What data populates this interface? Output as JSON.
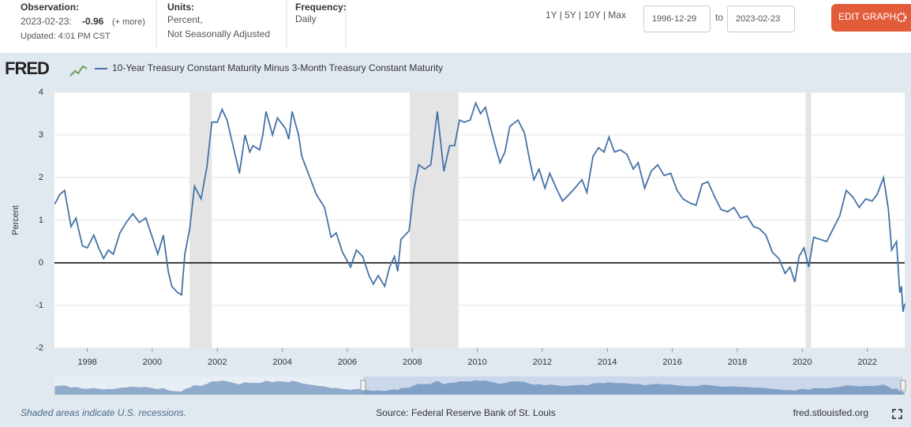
{
  "header": {
    "observation_label": "Observation:",
    "observation_date": "2023-02-23:",
    "observation_value": -0.96,
    "more": "(+ more)",
    "updated": "Updated: 4:01 PM CST",
    "units_label": "Units:",
    "units_line1": "Percent,",
    "units_line2": "Not Seasonally Adjusted",
    "frequency_label": "Frequency:",
    "frequency": "Daily",
    "ranges": "1Y | 5Y | 10Y | Max",
    "start_date": "1996-12-29",
    "to": "to",
    "end_date": "2023-02-23",
    "edit_button": "EDIT GRAPH"
  },
  "logo": "FRED",
  "footer": {
    "recession_note": "Shaded areas indicate U.S. recessions.",
    "source": "Source: Federal Reserve Bank of St. Louis",
    "site": "fred.stlouisfed.org"
  },
  "chart_data": {
    "type": "line",
    "ylabel": "Percent",
    "xlim": [
      1996.99,
      2023.15
    ],
    "xticks": [
      1998,
      2000,
      2002,
      2004,
      2006,
      2008,
      2010,
      2012,
      2014,
      2016,
      2018,
      2020,
      2022
    ],
    "ylim": [
      -2,
      4
    ],
    "yticks": [
      -2,
      -1,
      0,
      1,
      2,
      3,
      4
    ],
    "grid": true,
    "reference_line": 0,
    "recessions": [
      {
        "start": 2001.15,
        "end": 2001.83
      },
      {
        "start": 2007.92,
        "end": 2009.42
      },
      {
        "start": 2020.1,
        "end": 2020.27
      }
    ],
    "x": [
      1997.0,
      1997.15,
      1997.3,
      1997.5,
      1997.65,
      1997.85,
      1998.0,
      1998.2,
      1998.35,
      1998.5,
      1998.65,
      1998.8,
      1999.0,
      1999.2,
      1999.4,
      1999.6,
      1999.8,
      2000.0,
      2000.17,
      2000.34,
      2000.49,
      2000.6,
      2000.78,
      2000.9,
      2001.0,
      2001.15,
      2001.3,
      2001.5,
      2001.68,
      2001.83,
      2002.0,
      2002.15,
      2002.3,
      2002.5,
      2002.68,
      2002.85,
      2003.0,
      2003.1,
      2003.3,
      2003.4,
      2003.5,
      2003.7,
      2003.85,
      2004.1,
      2004.2,
      2004.3,
      2004.5,
      2004.6,
      2004.8,
      2005.05,
      2005.3,
      2005.5,
      2005.66,
      2005.85,
      2006.1,
      2006.28,
      2006.47,
      2006.67,
      2006.8,
      2006.95,
      2007.15,
      2007.3,
      2007.45,
      2007.55,
      2007.65,
      2007.9,
      2008.05,
      2008.2,
      2008.38,
      2008.57,
      2008.77,
      2008.97,
      2009.15,
      2009.3,
      2009.45,
      2009.6,
      2009.78,
      2009.95,
      2010.1,
      2010.25,
      2010.38,
      2010.55,
      2010.7,
      2010.85,
      2011.0,
      2011.25,
      2011.45,
      2011.6,
      2011.74,
      2011.9,
      2012.08,
      2012.23,
      2012.43,
      2012.62,
      2012.82,
      2013.0,
      2013.22,
      2013.37,
      2013.56,
      2013.73,
      2013.9,
      2014.05,
      2014.22,
      2014.4,
      2014.6,
      2014.8,
      2014.95,
      2015.15,
      2015.35,
      2015.55,
      2015.75,
      2015.95,
      2016.15,
      2016.33,
      2016.55,
      2016.73,
      2016.92,
      2017.1,
      2017.3,
      2017.5,
      2017.7,
      2017.9,
      2018.1,
      2018.3,
      2018.5,
      2018.68,
      2018.88,
      2019.08,
      2019.28,
      2019.47,
      2019.62,
      2019.77,
      2019.9,
      2020.05,
      2020.2,
      2020.35,
      2020.55,
      2020.75,
      2020.95,
      2021.15,
      2021.35,
      2021.55,
      2021.75,
      2021.95,
      2022.15,
      2022.3,
      2022.5,
      2022.65,
      2022.75,
      2022.9,
      2023.0,
      2023.05,
      2023.1,
      2023.15
    ],
    "series": [
      {
        "name": "10-Year Treasury Constant Maturity Minus 3-Month Treasury Constant Maturity",
        "color": "#4572a7",
        "values": [
          1.38,
          1.6,
          1.7,
          0.85,
          1.05,
          0.4,
          0.35,
          0.65,
          0.35,
          0.1,
          0.3,
          0.2,
          0.7,
          0.95,
          1.15,
          0.95,
          1.05,
          0.6,
          0.2,
          0.65,
          -0.2,
          -0.55,
          -0.7,
          -0.75,
          0.2,
          0.8,
          1.8,
          1.5,
          2.25,
          3.3,
          3.3,
          3.6,
          3.35,
          2.7,
          2.1,
          3.0,
          2.6,
          2.75,
          2.65,
          3.0,
          3.55,
          3.0,
          3.4,
          3.15,
          2.9,
          3.55,
          3.0,
          2.5,
          2.1,
          1.6,
          1.3,
          0.6,
          0.7,
          0.25,
          -0.1,
          0.3,
          0.15,
          -0.3,
          -0.5,
          -0.3,
          -0.55,
          -0.1,
          0.15,
          -0.2,
          0.55,
          0.75,
          1.7,
          2.3,
          2.2,
          2.3,
          3.55,
          2.15,
          2.75,
          2.75,
          3.35,
          3.3,
          3.35,
          3.75,
          3.5,
          3.65,
          3.25,
          2.75,
          2.35,
          2.6,
          3.2,
          3.35,
          3.05,
          2.45,
          1.95,
          2.2,
          1.75,
          2.1,
          1.75,
          1.45,
          1.6,
          1.75,
          1.95,
          1.65,
          2.5,
          2.7,
          2.6,
          2.95,
          2.6,
          2.65,
          2.55,
          2.2,
          2.35,
          1.75,
          2.15,
          2.3,
          2.05,
          2.1,
          1.7,
          1.5,
          1.4,
          1.35,
          1.85,
          1.9,
          1.55,
          1.25,
          1.2,
          1.3,
          1.05,
          1.1,
          0.85,
          0.8,
          0.65,
          0.25,
          0.1,
          -0.25,
          -0.1,
          -0.45,
          0.15,
          0.35,
          -0.1,
          0.6,
          0.55,
          0.5,
          0.8,
          1.1,
          1.7,
          1.55,
          1.3,
          1.5,
          1.45,
          1.6,
          2.0,
          1.25,
          0.3,
          0.5,
          -0.7,
          -0.55,
          -1.15,
          -0.96
        ]
      }
    ]
  }
}
